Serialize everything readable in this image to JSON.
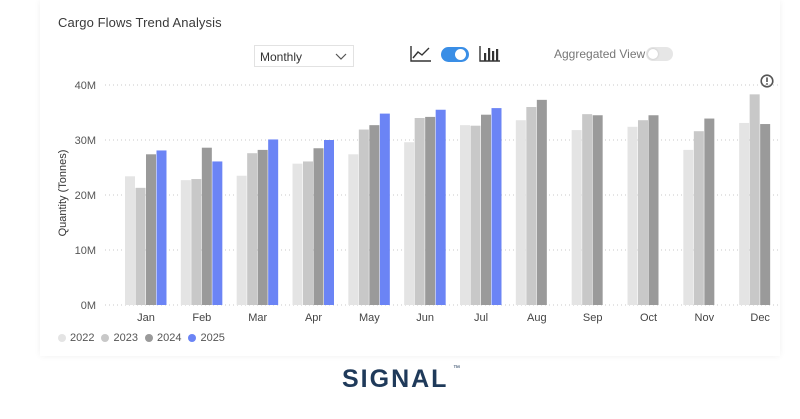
{
  "title": "Cargo Flows Trend Analysis",
  "controls": {
    "period_dropdown": "Monthly",
    "view_toggle_on": true,
    "aggregated_label": "Aggregated View",
    "aggregated_toggle_on": false,
    "accent": "#3a8ee6"
  },
  "brand": {
    "name": "SIGNAL",
    "tm": "™",
    "color": "#1f3a5a"
  },
  "chart_data": {
    "type": "bar",
    "title": "Cargo Flows Trend Analysis",
    "xlabel": "",
    "ylabel": "Quantity (Tonnes)",
    "ylim": [
      0,
      40000000
    ],
    "yticks": [
      0,
      10000000,
      20000000,
      30000000,
      40000000
    ],
    "ytick_labels": [
      "0M",
      "10M",
      "20M",
      "30M",
      "40M"
    ],
    "grid": true,
    "legend_position": "bottom-left",
    "categories": [
      "Jan",
      "Feb",
      "Mar",
      "Apr",
      "May",
      "Jun",
      "Jul",
      "Aug",
      "Sep",
      "Oct",
      "Nov",
      "Dec"
    ],
    "series": [
      {
        "name": "2022",
        "color": "#e4e4e4",
        "values": [
          23.4,
          22.7,
          23.5,
          25.7,
          27.4,
          29.6,
          32.7,
          33.6,
          31.8,
          32.4,
          28.2,
          33.1
        ]
      },
      {
        "name": "2023",
        "color": "#c8c8c8",
        "values": [
          21.3,
          22.9,
          27.6,
          26.1,
          31.9,
          34.0,
          32.6,
          36.0,
          34.7,
          33.6,
          31.6,
          38.3
        ]
      },
      {
        "name": "2024",
        "color": "#9a9a9a",
        "values": [
          27.4,
          28.6,
          28.2,
          28.5,
          32.7,
          34.2,
          34.6,
          37.3,
          34.5,
          34.5,
          33.9,
          32.9
        ]
      },
      {
        "name": "2025",
        "color": "#6b84f5",
        "values": [
          28.1,
          26.1,
          30.1,
          30.0,
          34.8,
          35.5,
          35.8,
          null,
          null,
          null,
          null,
          null
        ]
      }
    ],
    "value_unit": "M"
  }
}
